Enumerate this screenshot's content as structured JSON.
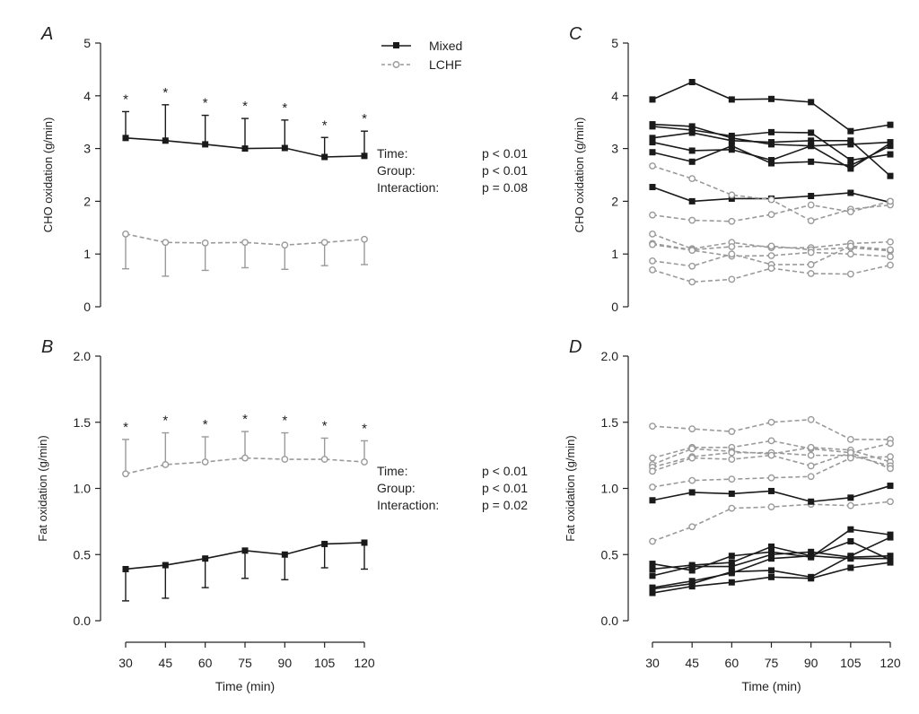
{
  "colors": {
    "mixed": "#1a1a1a",
    "lchf": "#9a9a9a"
  },
  "legend": {
    "mixed_label": "Mixed",
    "lchf_label": "LCHF"
  },
  "chart_data": [
    {
      "panel": "A",
      "type": "line",
      "title": "A",
      "xlabel": "",
      "ylabel": "CHO oxidation (g/min)",
      "x": [
        30,
        45,
        60,
        75,
        90,
        105,
        120
      ],
      "ylim": [
        0,
        5
      ],
      "yticks": [
        "0",
        "1",
        "2",
        "3",
        "4",
        "5"
      ],
      "xticks": [],
      "series": [
        {
          "name": "Mixed",
          "values": [
            3.2,
            3.15,
            3.08,
            3.0,
            3.01,
            2.84,
            2.86
          ],
          "error": [
            0.5,
            0.68,
            0.55,
            0.57,
            0.53,
            0.37,
            0.47
          ],
          "error_dir": "up"
        },
        {
          "name": "LCHF",
          "values": [
            1.38,
            1.22,
            1.21,
            1.22,
            1.17,
            1.22,
            1.28
          ],
          "error": [
            0.66,
            0.64,
            0.52,
            0.48,
            0.46,
            0.44,
            0.48
          ],
          "error_dir": "down"
        }
      ],
      "sig_markers": [
        "*",
        "*",
        "*",
        "*",
        "*",
        "*",
        "*"
      ],
      "stats": [
        {
          "label": "Time:",
          "value": "p < 0.01"
        },
        {
          "label": "Group:",
          "value": "p < 0.01"
        },
        {
          "label": "Interaction:",
          "value": "p = 0.08"
        }
      ]
    },
    {
      "panel": "B",
      "type": "line",
      "title": "B",
      "xlabel": "Time (min)",
      "ylabel": "Fat oxidation (g/min)",
      "x": [
        30,
        45,
        60,
        75,
        90,
        105,
        120
      ],
      "ylim": [
        0,
        2
      ],
      "yticks": [
        "0.0",
        "0.5",
        "1.0",
        "1.5",
        "2.0"
      ],
      "xticks": [
        "30",
        "45",
        "60",
        "75",
        "90",
        "105",
        "120"
      ],
      "series": [
        {
          "name": "Mixed",
          "values": [
            0.39,
            0.42,
            0.47,
            0.53,
            0.5,
            0.58,
            0.59
          ],
          "error": [
            0.24,
            0.25,
            0.22,
            0.21,
            0.19,
            0.18,
            0.2
          ],
          "error_dir": "down"
        },
        {
          "name": "LCHF",
          "values": [
            1.11,
            1.18,
            1.2,
            1.23,
            1.22,
            1.22,
            1.2
          ],
          "error": [
            0.26,
            0.24,
            0.19,
            0.2,
            0.2,
            0.16,
            0.16
          ],
          "error_dir": "up"
        }
      ],
      "sig_markers": [
        "*",
        "*",
        "*",
        "*",
        "*",
        "*",
        "*"
      ],
      "stats": [
        {
          "label": "Time:",
          "value": "p < 0.01"
        },
        {
          "label": "Group:",
          "value": "p < 0.01"
        },
        {
          "label": "Interaction:",
          "value": "p = 0.02"
        }
      ]
    },
    {
      "panel": "C",
      "type": "line",
      "title": "C",
      "xlabel": "",
      "ylabel": "CHO oxidation (g/min)",
      "x": [
        30,
        45,
        60,
        75,
        90,
        105,
        120
      ],
      "ylim": [
        0,
        5
      ],
      "yticks": [
        "0",
        "1",
        "2",
        "3",
        "4",
        "5"
      ],
      "xticks": [],
      "series": [
        {
          "name": "Mixed",
          "values": [
            3.93,
            4.26,
            3.93,
            3.94,
            3.88,
            3.33,
            3.45
          ]
        },
        {
          "name": "Mixed",
          "values": [
            3.46,
            3.42,
            3.2,
            3.08,
            3.05,
            3.08,
            3.12
          ]
        },
        {
          "name": "Mixed",
          "values": [
            3.42,
            3.35,
            3.24,
            3.31,
            3.3,
            2.78,
            2.89
          ]
        },
        {
          "name": "Mixed",
          "values": [
            3.2,
            3.3,
            3.15,
            3.12,
            3.15,
            3.15,
            2.48
          ]
        },
        {
          "name": "Mixed",
          "values": [
            3.12,
            2.96,
            2.98,
            2.78,
            3.05,
            2.62,
            3.1
          ]
        },
        {
          "name": "Mixed",
          "values": [
            2.93,
            2.75,
            3.05,
            2.72,
            2.75,
            2.68,
            3.05
          ]
        },
        {
          "name": "Mixed",
          "values": [
            2.27,
            2.0,
            2.05,
            2.05,
            2.1,
            2.16,
            1.98
          ]
        },
        {
          "name": "LCHF",
          "values": [
            2.67,
            2.43,
            2.12,
            2.03,
            1.63,
            1.85,
            1.93
          ]
        },
        {
          "name": "LCHF",
          "values": [
            1.74,
            1.64,
            1.62,
            1.75,
            1.93,
            1.8,
            2.0
          ]
        },
        {
          "name": "LCHF",
          "values": [
            1.38,
            1.1,
            1.22,
            1.12,
            1.12,
            1.2,
            1.23
          ]
        },
        {
          "name": "LCHF",
          "values": [
            1.2,
            1.08,
            1.14,
            1.15,
            1.08,
            1.12,
            1.06
          ]
        },
        {
          "name": "LCHF",
          "values": [
            1.18,
            1.07,
            0.96,
            0.97,
            1.03,
            1.0,
            0.95
          ]
        },
        {
          "name": "LCHF",
          "values": [
            0.87,
            0.77,
            1.0,
            0.8,
            0.8,
            1.15,
            1.08
          ]
        },
        {
          "name": "LCHF",
          "values": [
            0.7,
            0.47,
            0.52,
            0.73,
            0.63,
            0.62,
            0.79
          ]
        }
      ]
    },
    {
      "panel": "D",
      "type": "line",
      "title": "D",
      "xlabel": "Time (min)",
      "ylabel": "Fat oxidation (g/min)",
      "x": [
        30,
        45,
        60,
        75,
        90,
        105,
        120
      ],
      "ylim": [
        0,
        2
      ],
      "yticks": [
        "0.0",
        "0.5",
        "1.0",
        "1.5",
        "2.0"
      ],
      "xticks": [
        "30",
        "45",
        "60",
        "75",
        "90",
        "105",
        "120"
      ],
      "series": [
        {
          "name": "LCHF",
          "values": [
            1.47,
            1.45,
            1.43,
            1.5,
            1.52,
            1.37,
            1.37
          ]
        },
        {
          "name": "LCHF",
          "values": [
            1.23,
            1.31,
            1.31,
            1.36,
            1.3,
            1.27,
            1.34
          ]
        },
        {
          "name": "LCHF",
          "values": [
            1.18,
            1.3,
            1.28,
            1.26,
            1.31,
            1.29,
            1.2
          ]
        },
        {
          "name": "LCHF",
          "values": [
            1.16,
            1.24,
            1.27,
            1.27,
            1.25,
            1.25,
            1.17
          ]
        },
        {
          "name": "LCHF",
          "values": [
            1.13,
            1.23,
            1.22,
            1.25,
            1.17,
            1.27,
            1.15
          ]
        },
        {
          "name": "LCHF",
          "values": [
            1.01,
            1.06,
            1.07,
            1.08,
            1.09,
            1.23,
            1.24
          ]
        },
        {
          "name": "LCHF",
          "values": [
            0.6,
            0.71,
            0.85,
            0.86,
            0.88,
            0.87,
            0.9
          ]
        },
        {
          "name": "Mixed",
          "values": [
            0.91,
            0.97,
            0.96,
            0.98,
            0.9,
            0.93,
            1.02
          ]
        },
        {
          "name": "Mixed",
          "values": [
            0.43,
            0.38,
            0.49,
            0.52,
            0.48,
            0.69,
            0.65
          ]
        },
        {
          "name": "Mixed",
          "values": [
            0.39,
            0.42,
            0.44,
            0.56,
            0.49,
            0.6,
            0.46
          ]
        },
        {
          "name": "Mixed",
          "values": [
            0.34,
            0.41,
            0.41,
            0.5,
            0.52,
            0.48,
            0.49
          ]
        },
        {
          "name": "Mixed",
          "values": [
            0.25,
            0.3,
            0.36,
            0.47,
            0.49,
            0.47,
            0.47
          ]
        },
        {
          "name": "Mixed",
          "values": [
            0.24,
            0.28,
            0.37,
            0.38,
            0.33,
            0.49,
            0.63
          ]
        },
        {
          "name": "Mixed",
          "values": [
            0.21,
            0.26,
            0.29,
            0.33,
            0.32,
            0.4,
            0.44
          ]
        }
      ]
    }
  ]
}
